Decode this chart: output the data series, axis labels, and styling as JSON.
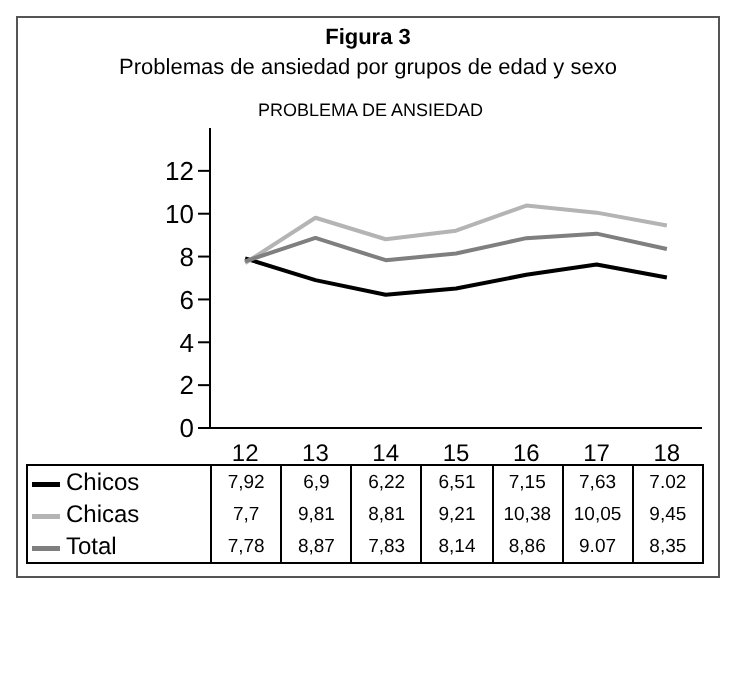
{
  "chart_data": {
    "type": "line",
    "title": "Figura 3",
    "subtitle": "Problemas de ansiedad por grupos de edad y sexo",
    "annotations": [
      "PROBLEMA DE ANSIEDAD"
    ],
    "categories": [
      "12",
      "13",
      "14",
      "15",
      "16",
      "17",
      "18"
    ],
    "series": [
      {
        "name": "Chicos",
        "color": "#000000",
        "values": [
          7.92,
          6.9,
          6.22,
          6.51,
          7.15,
          7.63,
          7.02
        ],
        "value_labels": [
          "7,92",
          "6,9",
          "6,22",
          "6,51",
          "7,15",
          "7,63",
          "7.02"
        ]
      },
      {
        "name": "Chicas",
        "color": "#b4b4b4",
        "values": [
          7.7,
          9.81,
          8.81,
          9.21,
          10.38,
          10.05,
          9.45
        ],
        "value_labels": [
          "7,7",
          "9,81",
          "8,81",
          "9,21",
          "10,38",
          "10,05",
          "9,45"
        ]
      },
      {
        "name": "Total",
        "color": "#7f7f7f",
        "values": [
          7.78,
          8.87,
          7.83,
          8.14,
          8.86,
          9.07,
          8.35
        ],
        "value_labels": [
          "7,78",
          "8,87",
          "7,83",
          "8,14",
          "8,86",
          "9.07",
          "8,35"
        ]
      }
    ],
    "ylim": [
      0,
      14
    ],
    "yticks": [
      0,
      2,
      4,
      6,
      8,
      10,
      12
    ],
    "legend": "bottom",
    "marker": "none",
    "line_style": "solid"
  }
}
